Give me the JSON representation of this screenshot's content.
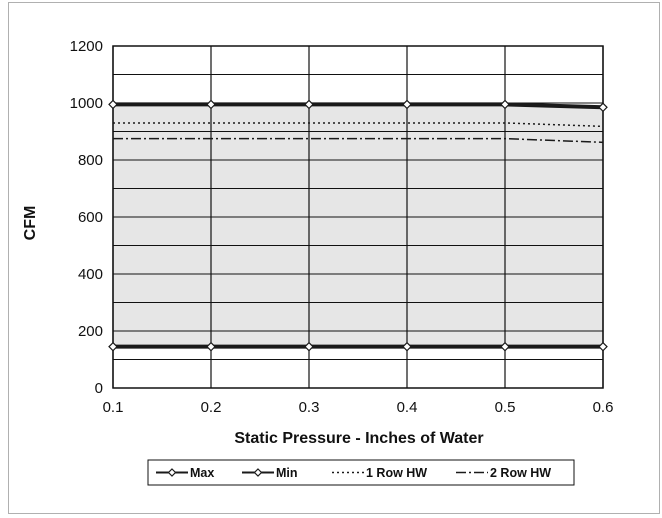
{
  "chart_data": {
    "type": "line",
    "title": "",
    "xlabel": "Static Pressure - Inches of Water",
    "ylabel": "CFM",
    "xlim": [
      0.1,
      0.6
    ],
    "ylim": [
      0,
      1200
    ],
    "x_ticks": [
      "0.1",
      "0.2",
      "0.3",
      "0.4",
      "0.5",
      "0.6"
    ],
    "y_ticks": [
      "0",
      "200",
      "400",
      "600",
      "800",
      "1000",
      "1200"
    ],
    "grid": true,
    "legend_position": "bottom",
    "shaded_region": "between Max and Min",
    "shade_color": "#e6e6e6",
    "x": [
      0.1,
      0.2,
      0.3,
      0.4,
      0.5,
      0.6
    ],
    "series": [
      {
        "name": "Max",
        "values": [
          995,
          995,
          995,
          995,
          995,
          985
        ],
        "style": "solid",
        "marker": "diamond",
        "width": 4,
        "color": "#1a1a1a"
      },
      {
        "name": "Min",
        "values": [
          145,
          145,
          145,
          145,
          145,
          145
        ],
        "style": "solid",
        "marker": "diamond",
        "width": 4,
        "color": "#1a1a1a"
      },
      {
        "name": "1 Row HW",
        "values": [
          930,
          930,
          930,
          930,
          930,
          918
        ],
        "style": "dotted",
        "marker": "none",
        "width": 1.5,
        "color": "#1a1a1a"
      },
      {
        "name": "2 Row HW",
        "values": [
          875,
          875,
          875,
          875,
          875,
          862
        ],
        "style": "dashdot",
        "marker": "none",
        "width": 1.5,
        "color": "#1a1a1a"
      }
    ]
  }
}
